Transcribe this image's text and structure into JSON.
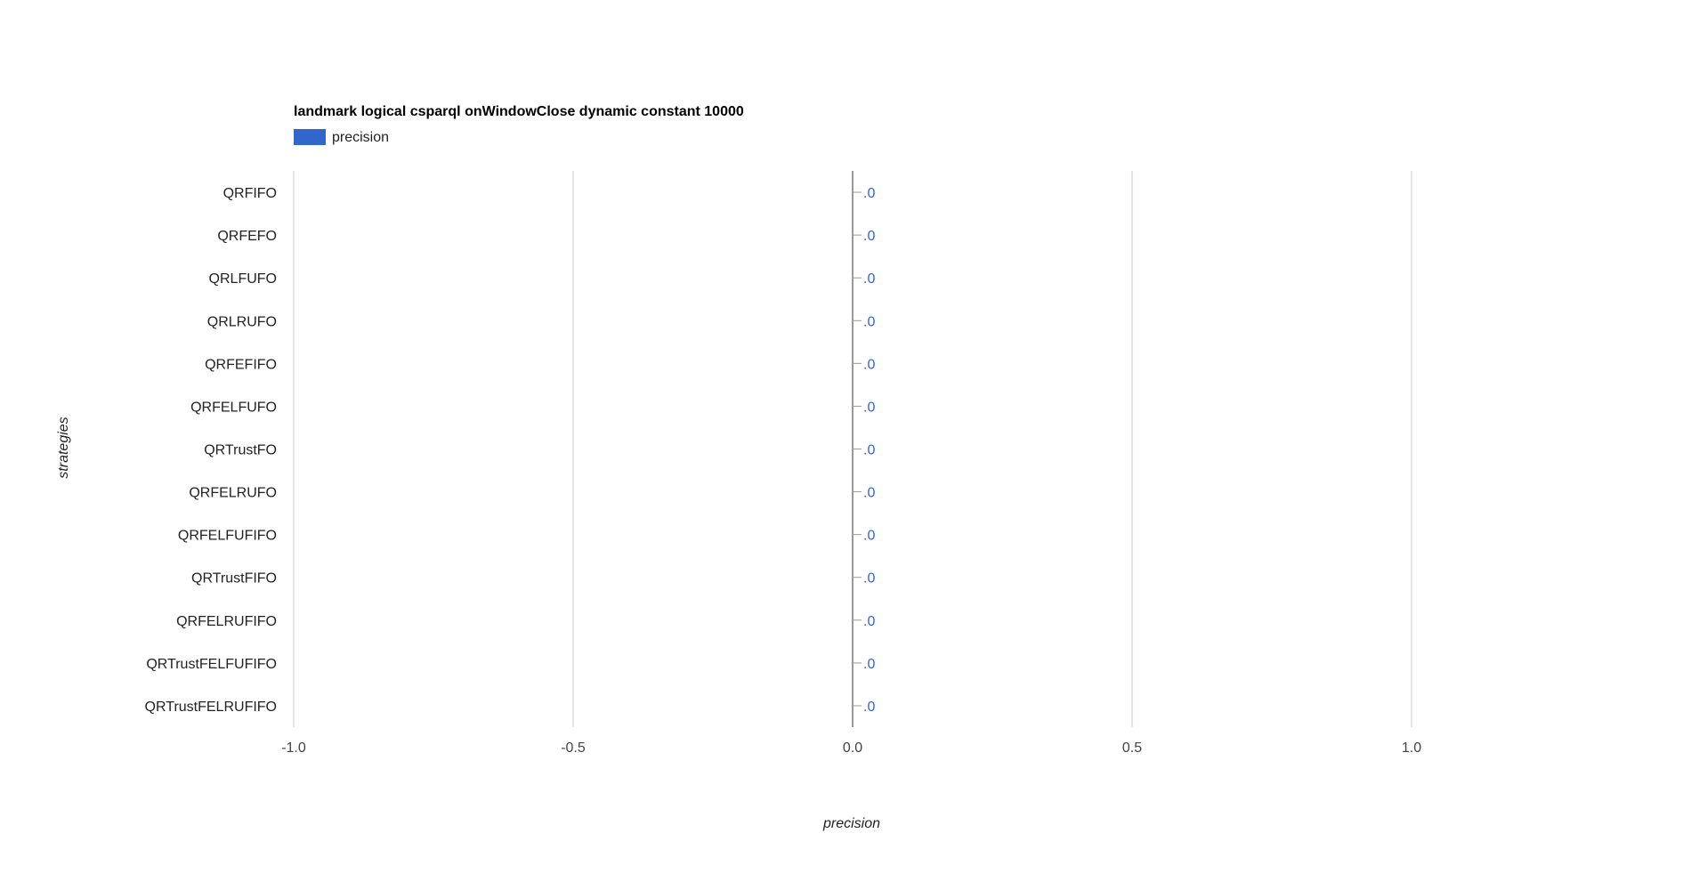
{
  "chart_data": {
    "type": "bar",
    "orientation": "horizontal",
    "title": "landmark logical csparql onWindowClose dynamic constant 10000",
    "xlabel": "precision",
    "ylabel": "strategies",
    "xlim": [
      -1.0,
      1.4
    ],
    "xticks": [
      -1.0,
      -0.5,
      0.0,
      0.5,
      1.0
    ],
    "xtick_labels": [
      "-1.0",
      "-0.5",
      "0.0",
      "0.5",
      "1.0"
    ],
    "grid": true,
    "legend_position": "top-left",
    "categories": [
      "QRFIFO",
      "QRFEFO",
      "QRLFUFO",
      "QRLRUFO",
      "QRFEFIFO",
      "QRFELFUFO",
      "QRTrustFO",
      "QRFELRUFO",
      "QRFELFUFIFO",
      "QRTrustFIFO",
      "QRFELRUFIFO",
      "QRTrustFELFUFIFO",
      "QRTrustFELRUFIFO"
    ],
    "series": [
      {
        "name": "precision",
        "color": "#3366cc",
        "values": [
          0,
          0,
          0,
          0,
          0,
          0,
          0,
          0,
          0,
          0,
          0,
          0,
          0
        ],
        "data_labels": [
          ".0",
          ".0",
          ".0",
          ".0",
          ".0",
          ".0",
          ".0",
          ".0",
          ".0",
          ".0",
          ".0",
          ".0",
          ".0"
        ]
      }
    ]
  }
}
